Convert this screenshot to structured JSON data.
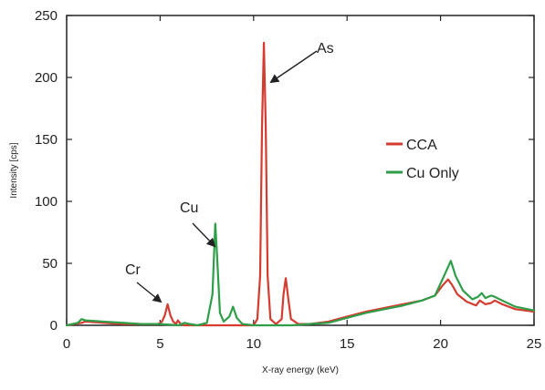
{
  "chart_data": {
    "type": "line",
    "title": "",
    "xlabel": "X-ray energy (keV)",
    "ylabel": "Intensity [cps]",
    "xlim": [
      0,
      25
    ],
    "ylim": [
      0,
      250
    ],
    "xticks": [
      0,
      5,
      10,
      15,
      20,
      25
    ],
    "yticks": [
      0,
      50,
      100,
      150,
      200,
      250
    ],
    "grid": false,
    "legend_position": "right",
    "series": [
      {
        "name": "CCA",
        "color": "#d63b2f",
        "x": [
          0.0,
          0.8,
          1.0,
          2.0,
          3.0,
          4.0,
          4.9,
          5.1,
          5.25,
          5.4,
          5.55,
          5.7,
          5.85,
          5.95,
          6.1,
          6.3,
          7.0,
          8.0,
          9.0,
          10.0,
          10.2,
          10.35,
          10.45,
          10.55,
          10.65,
          10.75,
          10.9,
          11.2,
          11.5,
          11.6,
          11.72,
          11.85,
          12.0,
          12.4,
          13.0,
          14.0,
          15.0,
          16.0,
          17.0,
          18.0,
          19.0,
          19.7,
          20.1,
          20.4,
          20.6,
          20.9,
          21.4,
          21.9,
          22.1,
          22.4,
          22.7,
          22.9,
          23.3,
          24.0,
          25.0
        ],
        "y": [
          0,
          2,
          3,
          2,
          1,
          1,
          1,
          3,
          8,
          17,
          8,
          3,
          1,
          4,
          1,
          0,
          0,
          0,
          0,
          0,
          5,
          40,
          160,
          228,
          160,
          40,
          5,
          1,
          5,
          25,
          38,
          22,
          5,
          1,
          1,
          3,
          7,
          11,
          14,
          17,
          20,
          24,
          32,
          37,
          33,
          25,
          19,
          16,
          20,
          17,
          18,
          20,
          17,
          13,
          11
        ]
      },
      {
        "name": "Cu Only",
        "color": "#2e9e48",
        "x": [
          0.0,
          0.6,
          0.8,
          1.0,
          2.0,
          3.0,
          4.0,
          5.0,
          6.0,
          6.3,
          6.6,
          7.0,
          7.5,
          7.8,
          7.95,
          8.05,
          8.2,
          8.4,
          8.7,
          8.9,
          9.1,
          9.4,
          10.0,
          11.0,
          12.0,
          13.0,
          14.0,
          15.0,
          16.0,
          17.0,
          18.0,
          19.0,
          19.7,
          20.1,
          20.4,
          20.55,
          20.8,
          21.2,
          21.7,
          22.0,
          22.2,
          22.4,
          22.7,
          22.9,
          23.3,
          24.0,
          25.0
        ],
        "y": [
          0,
          2,
          5,
          4,
          3,
          2,
          1,
          1,
          0,
          2,
          1,
          0,
          2,
          25,
          82,
          55,
          10,
          3,
          7,
          15,
          6,
          1,
          0,
          0,
          0,
          1,
          2,
          6,
          10,
          13,
          16,
          20,
          24,
          37,
          47,
          52,
          40,
          28,
          21,
          23,
          26,
          22,
          24,
          23,
          20,
          15,
          12
        ]
      }
    ],
    "annotations": [
      {
        "text": "As",
        "x": 10.6,
        "y": 228
      },
      {
        "text": "Cu",
        "x": 8.0,
        "y": 82
      },
      {
        "text": "Cr",
        "x": 5.4,
        "y": 17
      }
    ]
  }
}
